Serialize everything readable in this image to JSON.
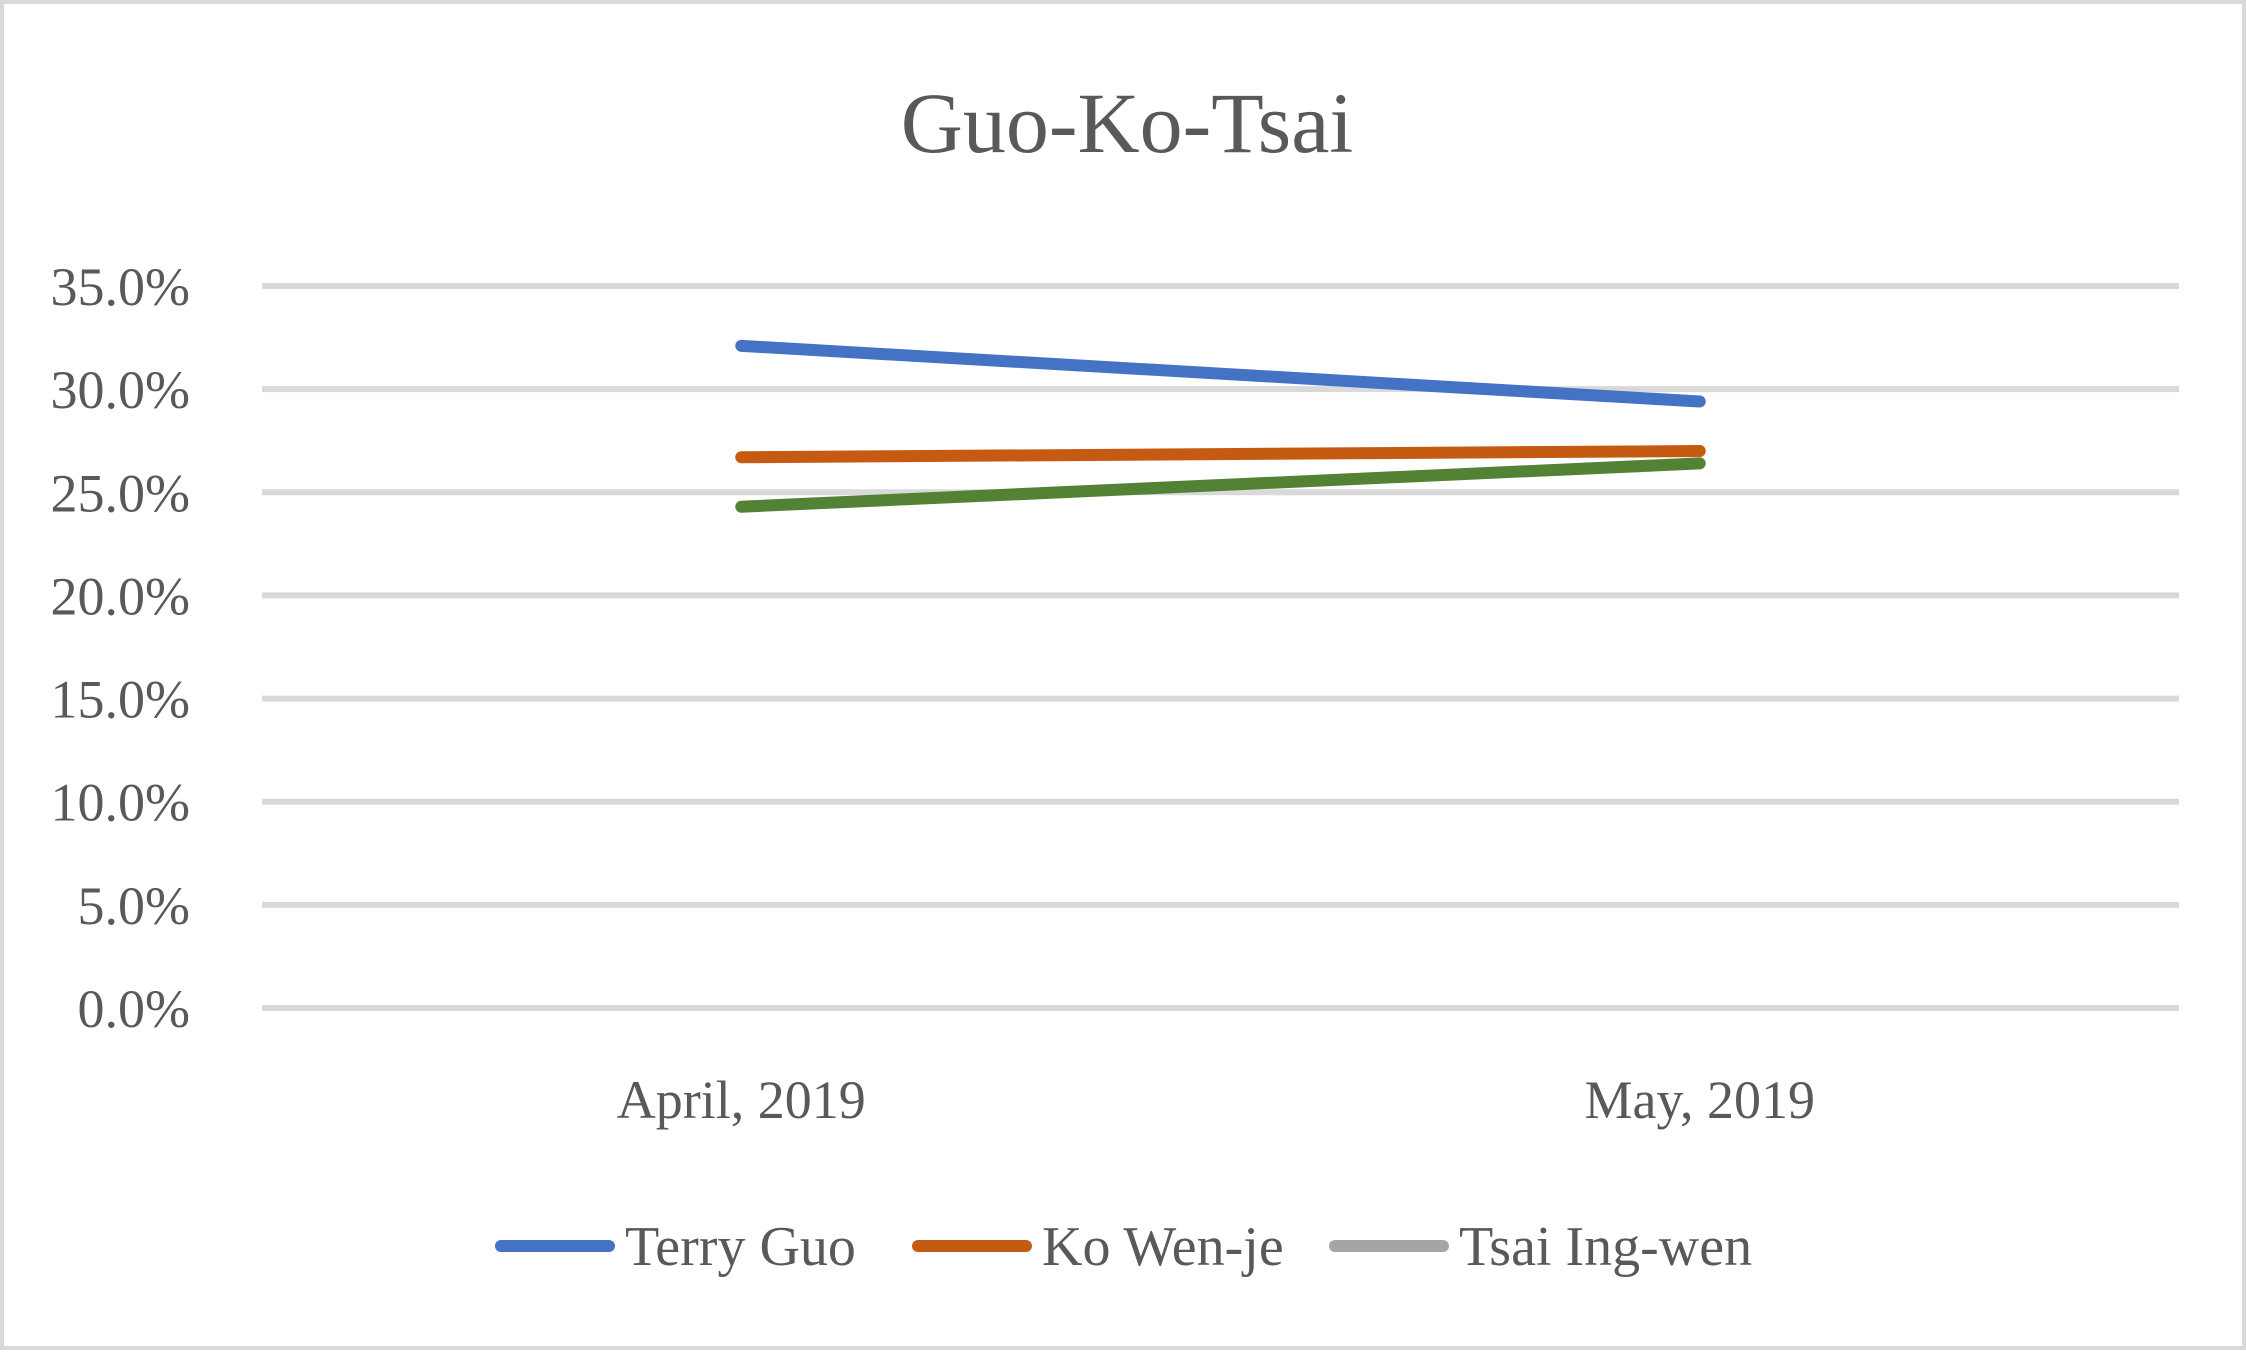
{
  "chart_data": {
    "type": "line",
    "title": "Guo-Ko-Tsai",
    "xlabel": "",
    "ylabel": "",
    "categories": [
      "April, 2019",
      "May, 2019"
    ],
    "ylim": [
      0,
      35
    ],
    "y_ticks": [
      "0.0%",
      "5.0%",
      "10.0%",
      "15.0%",
      "20.0%",
      "25.0%",
      "30.0%",
      "35.0%"
    ],
    "y_tick_values": [
      0,
      5,
      10,
      15,
      20,
      25,
      30,
      35
    ],
    "grid": true,
    "legend_position": "bottom",
    "series": [
      {
        "name": "Terry Guo",
        "values": [
          32.1,
          29.4
        ],
        "color": "#4472c4"
      },
      {
        "name": "Ko Wen-je",
        "values": [
          26.7,
          27.0
        ],
        "color": "#c55a11"
      },
      {
        "name": "Tsai Ing-wen",
        "values": [
          24.3,
          26.4
        ],
        "color": "#548235",
        "legend_color": "#a5a5a5"
      }
    ]
  }
}
